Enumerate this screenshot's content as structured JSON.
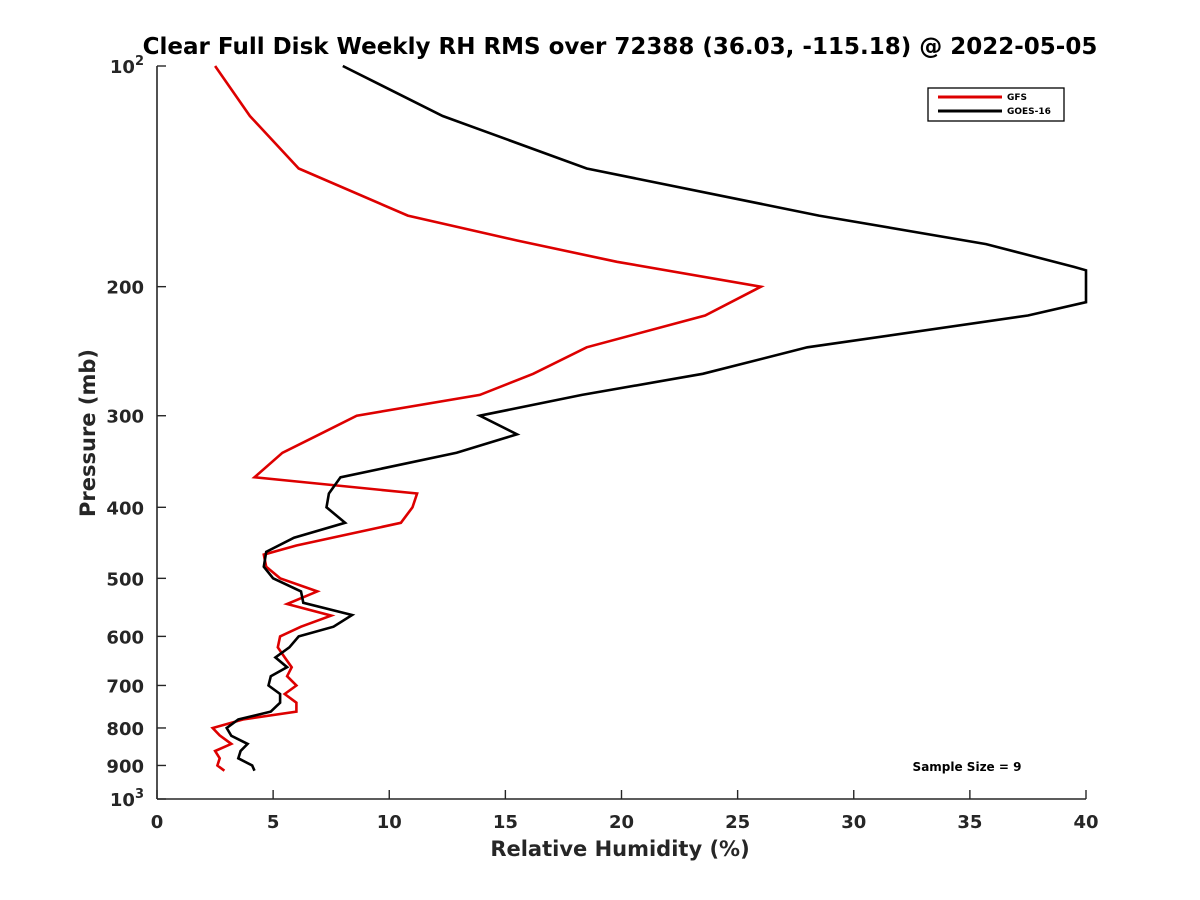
{
  "chart_data": {
    "type": "line",
    "title": "Clear Full Disk Weekly RH RMS over 72388 (36.03, -115.18) @ 2022-05-05",
    "xlabel": "Relative Humidity (%)",
    "ylabel": "Pressure (mb)",
    "xlim": [
      0,
      40
    ],
    "ylim": [
      100,
      1000
    ],
    "y_scale": "log",
    "y_reversed": true,
    "x_ticks": [
      "0",
      "5",
      "10",
      "15",
      "20",
      "25",
      "30",
      "35",
      "40"
    ],
    "y_ticks": [
      {
        "value": 100,
        "base": "10",
        "exp": "2",
        "label": ""
      },
      {
        "value": 200,
        "label": "200"
      },
      {
        "value": 300,
        "label": "300"
      },
      {
        "value": 400,
        "label": "400"
      },
      {
        "value": 500,
        "label": "500"
      },
      {
        "value": 600,
        "label": "600"
      },
      {
        "value": 700,
        "label": "700"
      },
      {
        "value": 800,
        "label": "800"
      },
      {
        "value": 900,
        "label": "900"
      },
      {
        "value": 1000,
        "base": "10",
        "exp": "3",
        "label": ""
      }
    ],
    "legend_position": "top-right",
    "grid": false,
    "annotation": "Sample Size = 9",
    "series": [
      {
        "name": "GFS",
        "color": "#dd0000",
        "points": [
          [
            2.5,
            100
          ],
          [
            4.0,
            117
          ],
          [
            6.1,
            138
          ],
          [
            10.8,
            160
          ],
          [
            15.5,
            173
          ],
          [
            19.8,
            185
          ],
          [
            26.0,
            200
          ],
          [
            23.6,
            219
          ],
          [
            18.5,
            242
          ],
          [
            16.2,
            263
          ],
          [
            13.9,
            281
          ],
          [
            8.6,
            300
          ],
          [
            7.0,
            318
          ],
          [
            5.4,
            337
          ],
          [
            4.2,
            364
          ],
          [
            11.2,
            383
          ],
          [
            11.0,
            400
          ],
          [
            10.5,
            420
          ],
          [
            6.0,
            451
          ],
          [
            4.6,
            464
          ],
          [
            4.7,
            482
          ],
          [
            5.3,
            500
          ],
          [
            6.9,
            521
          ],
          [
            5.6,
            542
          ],
          [
            7.5,
            562
          ],
          [
            6.2,
            582
          ],
          [
            5.3,
            600
          ],
          [
            5.2,
            621
          ],
          [
            5.5,
            641
          ],
          [
            5.8,
            661
          ],
          [
            5.6,
            680
          ],
          [
            6.0,
            700
          ],
          [
            5.5,
            719
          ],
          [
            6.0,
            739
          ],
          [
            6.0,
            760
          ],
          [
            3.7,
            779
          ],
          [
            2.4,
            800
          ],
          [
            2.7,
            819
          ],
          [
            3.2,
            841
          ],
          [
            2.5,
            860
          ],
          [
            2.7,
            880
          ],
          [
            2.6,
            900
          ],
          [
            2.9,
            915
          ]
        ]
      },
      {
        "name": "GOES-16",
        "color": "#000000",
        "points": [
          [
            8.0,
            100
          ],
          [
            12.3,
            117
          ],
          [
            18.5,
            138
          ],
          [
            28.5,
            160
          ],
          [
            35.7,
            175
          ],
          [
            39.5,
            188
          ],
          [
            40.0,
            190
          ],
          [
            40.0,
            210
          ],
          [
            37.5,
            219
          ],
          [
            28.0,
            242
          ],
          [
            23.5,
            263
          ],
          [
            18.3,
            281
          ],
          [
            13.9,
            300
          ],
          [
            15.5,
            318
          ],
          [
            12.9,
            337
          ],
          [
            7.9,
            364
          ],
          [
            7.4,
            383
          ],
          [
            7.3,
            400
          ],
          [
            8.1,
            420
          ],
          [
            5.9,
            440
          ],
          [
            4.7,
            460
          ],
          [
            4.6,
            482
          ],
          [
            5.0,
            500
          ],
          [
            6.2,
            521
          ],
          [
            6.3,
            540
          ],
          [
            8.4,
            561
          ],
          [
            7.6,
            582
          ],
          [
            6.1,
            600
          ],
          [
            5.7,
            621
          ],
          [
            5.1,
            641
          ],
          [
            5.6,
            661
          ],
          [
            4.9,
            680
          ],
          [
            4.8,
            700
          ],
          [
            5.3,
            719
          ],
          [
            5.3,
            739
          ],
          [
            4.9,
            760
          ],
          [
            3.5,
            779
          ],
          [
            3.0,
            800
          ],
          [
            3.2,
            820
          ],
          [
            3.9,
            841
          ],
          [
            3.6,
            860
          ],
          [
            3.5,
            880
          ],
          [
            4.1,
            900
          ],
          [
            4.2,
            915
          ]
        ]
      }
    ]
  }
}
